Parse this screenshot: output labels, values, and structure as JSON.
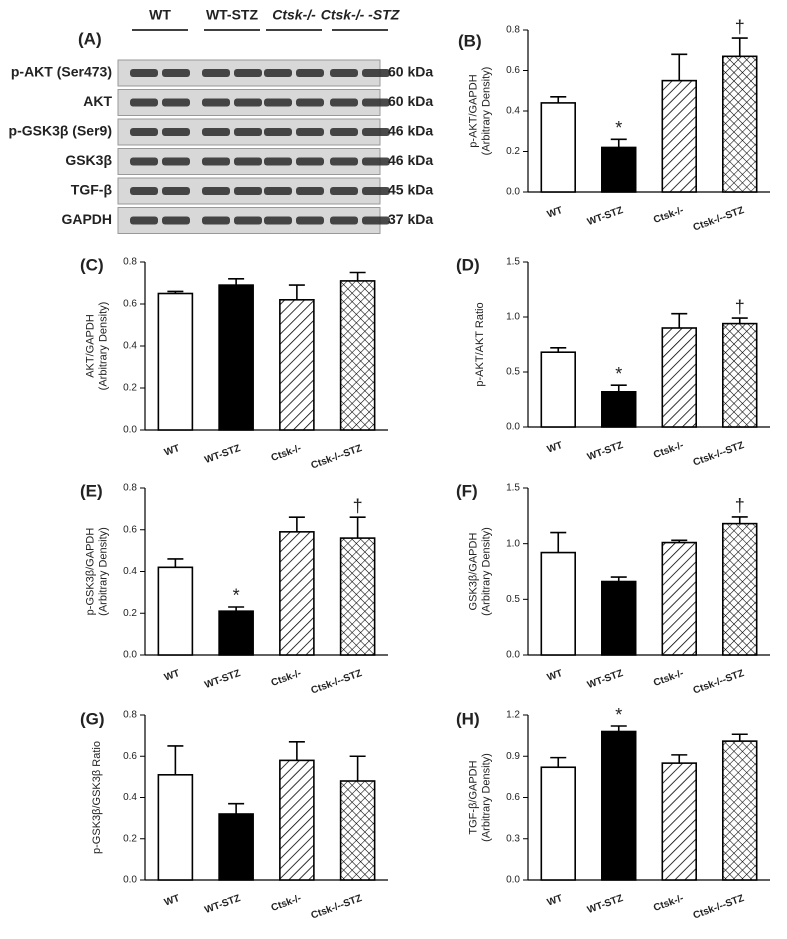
{
  "blot": {
    "panel_label": "(A)",
    "lanes": [
      "WT",
      "WT-STZ",
      "Ctsk-/-",
      "Ctsk-/- -STZ"
    ],
    "rows": [
      {
        "name": "p-AKT (Ser473)",
        "kda": "60 kDa"
      },
      {
        "name": "AKT",
        "kda": "60 kDa"
      },
      {
        "name": "p-GSK3β (Ser9)",
        "kda": "46 kDa"
      },
      {
        "name": "GSK3β",
        "kda": "46 kDa"
      },
      {
        "name": "TGF-β",
        "kda": "45 kDa"
      },
      {
        "name": "GAPDH",
        "kda": "37 kDa"
      }
    ]
  },
  "chart_data": [
    {
      "type": "bar",
      "panel_label": "(B)",
      "ylabel": [
        "p-AKT/GAPDH",
        "(Arbitrary Density)"
      ],
      "categories": [
        "WT",
        "WT-STZ",
        "Ctsk-/-",
        "Ctsk-/--STZ"
      ],
      "values": [
        0.44,
        0.22,
        0.55,
        0.67
      ],
      "errors": [
        0.03,
        0.04,
        0.13,
        0.09
      ],
      "fills": [
        "white",
        "black",
        "hatch",
        "crosshatch"
      ],
      "annotations": [
        {
          "index": 1,
          "text": "*"
        },
        {
          "index": 3,
          "text": "†"
        }
      ],
      "ylim": [
        0,
        0.8
      ],
      "yticks": [
        {
          "value": 0,
          "label": "0.0"
        },
        0.2,
        0.4,
        0.6,
        0.8
      ]
    },
    {
      "type": "bar",
      "panel_label": "(C)",
      "ylabel": [
        "AKT/GAPDH",
        "(Arbitrary Density)"
      ],
      "categories": [
        "WT",
        "WT-STZ",
        "Ctsk-/-",
        "Ctsk-/--STZ"
      ],
      "values": [
        0.65,
        0.69,
        0.62,
        0.71
      ],
      "errors": [
        0.01,
        0.03,
        0.07,
        0.04
      ],
      "fills": [
        "white",
        "black",
        "hatch",
        "crosshatch"
      ],
      "annotations": [],
      "ylim": [
        0,
        0.8
      ],
      "yticks": [
        {
          "value": 0,
          "label": "0.0"
        },
        0.2,
        0.4,
        0.6,
        0.8
      ]
    },
    {
      "type": "bar",
      "panel_label": "(D)",
      "ylabel": [
        "p-AKT/AKT Ratio"
      ],
      "categories": [
        "WT",
        "WT-STZ",
        "Ctsk-/-",
        "Ctsk-/--STZ"
      ],
      "values": [
        0.68,
        0.32,
        0.9,
        0.94
      ],
      "errors": [
        0.04,
        0.06,
        0.13,
        0.05
      ],
      "fills": [
        "white",
        "black",
        "hatch",
        "crosshatch"
      ],
      "annotations": [
        {
          "index": 1,
          "text": "*"
        },
        {
          "index": 3,
          "text": "†"
        }
      ],
      "ylim": [
        0,
        1.5
      ],
      "yticks": [
        {
          "value": 0,
          "label": "0.0"
        },
        0.5,
        {
          "value": 1,
          "label": "1.0"
        },
        1.5
      ]
    },
    {
      "type": "bar",
      "panel_label": "(E)",
      "ylabel": [
        "p-GSK3β/GAPDH",
        "(Arbitrary Density)"
      ],
      "categories": [
        "WT",
        "WT-STZ",
        "Ctsk-/-",
        "Ctsk-/--STZ"
      ],
      "values": [
        0.42,
        0.21,
        0.59,
        0.56
      ],
      "errors": [
        0.04,
        0.02,
        0.07,
        0.1
      ],
      "fills": [
        "white",
        "black",
        "hatch",
        "crosshatch"
      ],
      "annotations": [
        {
          "index": 1,
          "text": "*"
        },
        {
          "index": 3,
          "text": "†"
        }
      ],
      "ylim": [
        0,
        0.8
      ],
      "yticks": [
        {
          "value": 0,
          "label": "0.0"
        },
        0.2,
        0.4,
        0.6,
        0.8
      ]
    },
    {
      "type": "bar",
      "panel_label": "(F)",
      "ylabel": [
        "GSK3β/GAPDH",
        "(Arbitrary Density)"
      ],
      "categories": [
        "WT",
        "WT-STZ",
        "Ctsk-/-",
        "Ctsk-/--STZ"
      ],
      "values": [
        0.92,
        0.66,
        1.01,
        1.18
      ],
      "errors": [
        0.18,
        0.04,
        0.02,
        0.06
      ],
      "fills": [
        "white",
        "black",
        "hatch",
        "crosshatch"
      ],
      "annotations": [
        {
          "index": 3,
          "text": "†"
        }
      ],
      "ylim": [
        0,
        1.5
      ],
      "yticks": [
        {
          "value": 0,
          "label": "0.0"
        },
        0.5,
        {
          "value": 1,
          "label": "1.0"
        },
        1.5
      ]
    },
    {
      "type": "bar",
      "panel_label": "(G)",
      "ylabel": [
        "p-GSK3β/GSK3β Ratio"
      ],
      "categories": [
        "WT",
        "WT-STZ",
        "Ctsk-/-",
        "Ctsk-/--STZ"
      ],
      "values": [
        0.51,
        0.32,
        0.58,
        0.48
      ],
      "errors": [
        0.14,
        0.05,
        0.09,
        0.12
      ],
      "fills": [
        "white",
        "black",
        "hatch",
        "crosshatch"
      ],
      "annotations": [],
      "ylim": [
        0,
        0.8
      ],
      "yticks": [
        {
          "value": 0,
          "label": "0.0"
        },
        0.2,
        0.4,
        0.6,
        0.8
      ]
    },
    {
      "type": "bar",
      "panel_label": "(H)",
      "ylabel": [
        "TGF-β/GAPDH",
        "(Arbitrary Density)"
      ],
      "categories": [
        "WT",
        "WT-STZ",
        "Ctsk-/-",
        "Ctsk-/--STZ"
      ],
      "values": [
        0.82,
        1.08,
        0.85,
        1.01
      ],
      "errors": [
        0.07,
        0.04,
        0.06,
        0.05
      ],
      "fills": [
        "white",
        "black",
        "hatch",
        "crosshatch"
      ],
      "annotations": [
        {
          "index": 1,
          "text": "*"
        }
      ],
      "ylim": [
        0,
        1.2
      ],
      "yticks": [
        {
          "value": 0,
          "label": "0.0"
        },
        0.3,
        0.6,
        0.9,
        1.2
      ]
    }
  ]
}
